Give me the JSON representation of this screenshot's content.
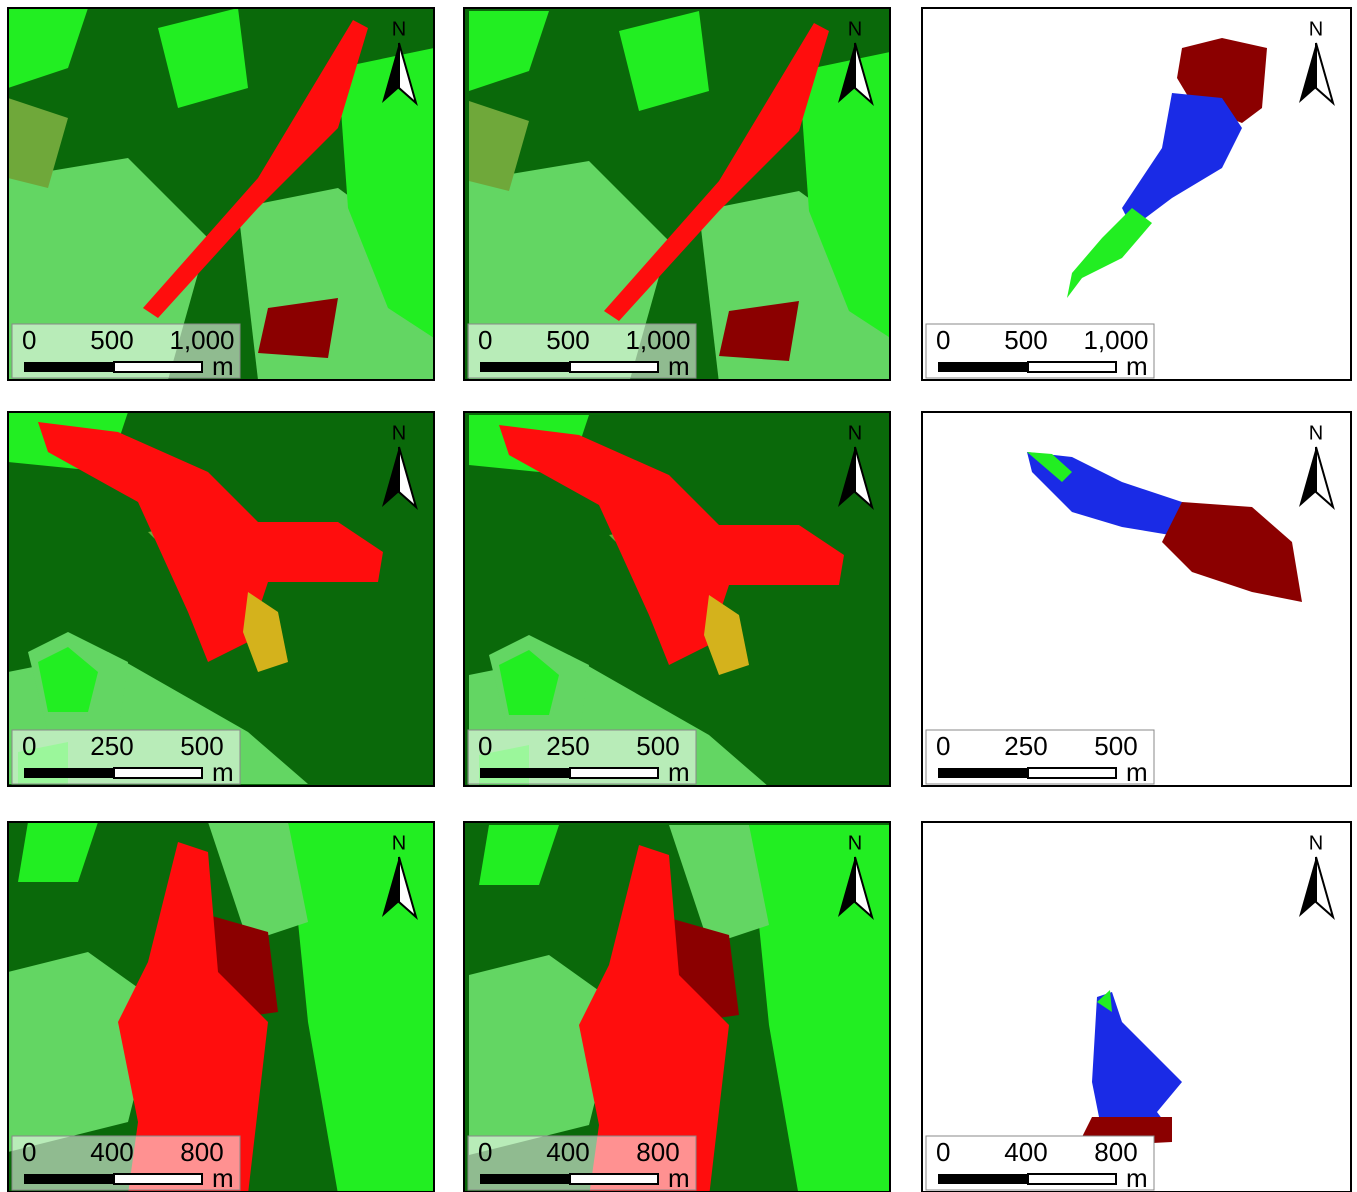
{
  "panels": [
    {
      "north": "N",
      "scale": [
        "0",
        "500",
        "1,000"
      ],
      "unit": "m"
    },
    {
      "north": "N",
      "scale": [
        "0",
        "500",
        "1,000"
      ],
      "unit": "m"
    },
    {
      "north": "N",
      "scale": [
        "0",
        "500",
        "1,000"
      ],
      "unit": "m"
    },
    {
      "north": "N",
      "scale": [
        "0",
        "250",
        "500"
      ],
      "unit": "m"
    },
    {
      "north": "N",
      "scale": [
        "0",
        "250",
        "500"
      ],
      "unit": "m"
    },
    {
      "north": "N",
      "scale": [
        "0",
        "250",
        "500"
      ],
      "unit": "m"
    },
    {
      "north": "N",
      "scale": [
        "0",
        "400",
        "800"
      ],
      "unit": "m"
    },
    {
      "north": "N",
      "scale": [
        "0",
        "400",
        "800"
      ],
      "unit": "m"
    },
    {
      "north": "N",
      "scale": [
        "0",
        "400",
        "800"
      ],
      "unit": "m"
    }
  ]
}
